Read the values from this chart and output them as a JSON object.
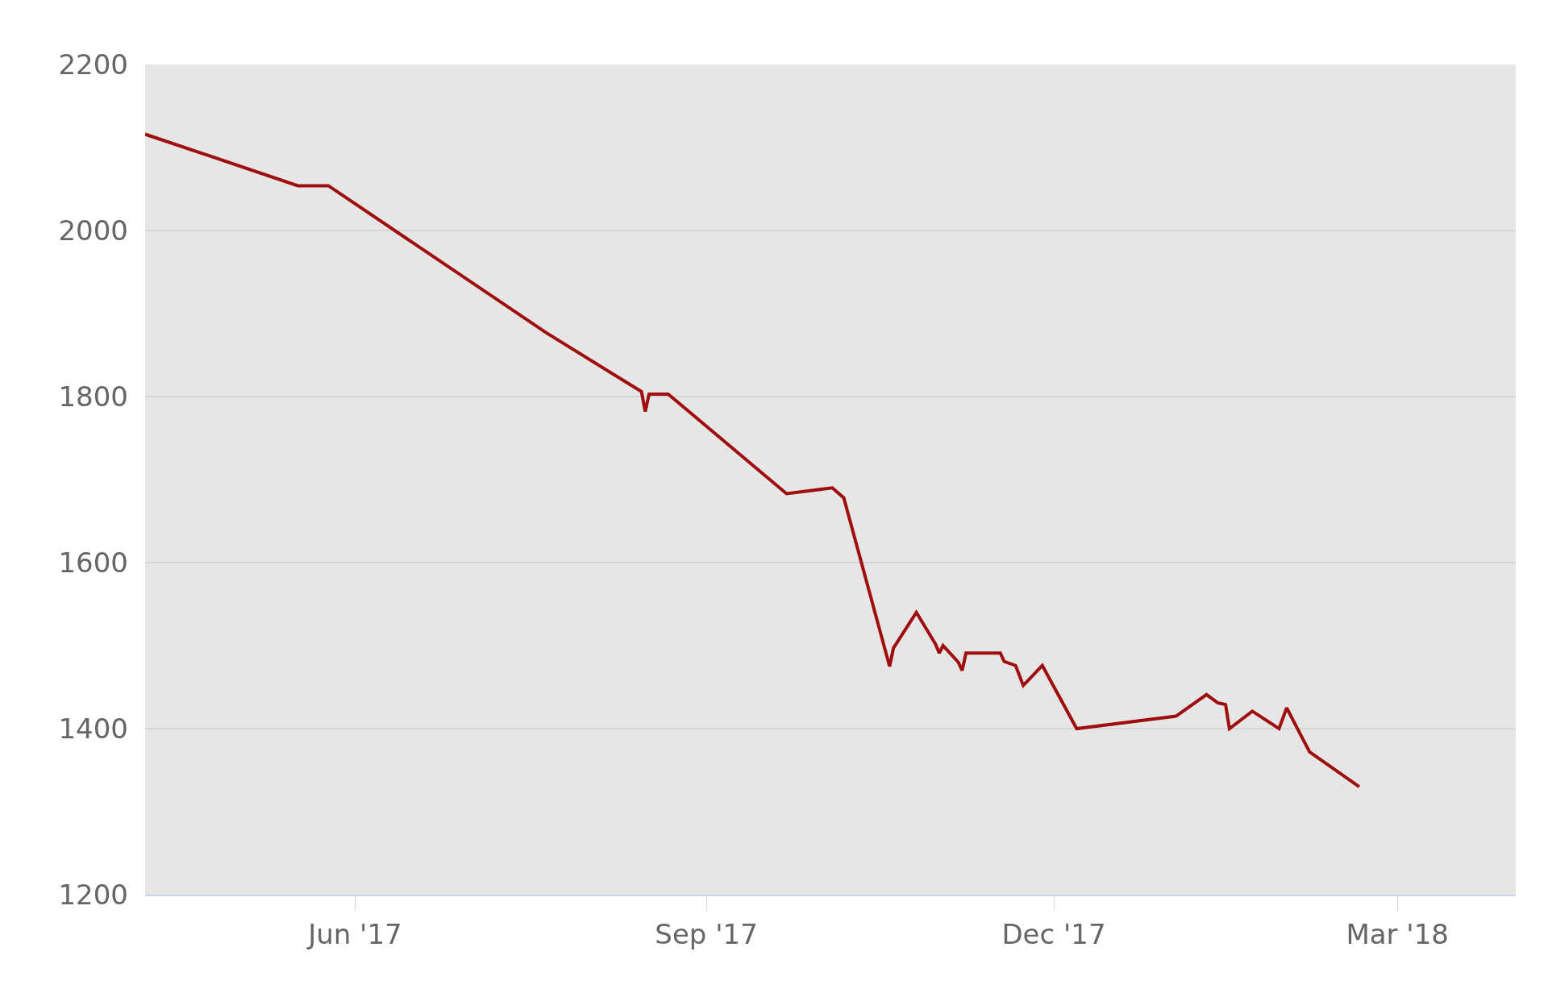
{
  "chart_data": {
    "type": "line",
    "xlim": [
      "2017-04-07",
      "2018-04-01"
    ],
    "xticks": [
      {
        "value": "2017-06-01",
        "label": "Jun '17"
      },
      {
        "value": "2017-09-01",
        "label": "Sep '17"
      },
      {
        "value": "2017-12-01",
        "label": "Dec '17"
      },
      {
        "value": "2018-03-01",
        "label": "Mar '18"
      }
    ],
    "ylim": [
      1200,
      2200
    ],
    "yticks": [
      1200,
      1400,
      1600,
      1800,
      2000,
      2200
    ],
    "grid": "y",
    "marker": "none",
    "line_style": "solid",
    "series": [
      {
        "color": "#a00d0d",
        "x": [
          "2017-04-07",
          "2017-05-17",
          "2017-05-25",
          "2017-07-21",
          "2017-08-15",
          "2017-08-16",
          "2017-08-17",
          "2017-08-22",
          "2017-09-22",
          "2017-10-04",
          "2017-10-07",
          "2017-10-19",
          "2017-10-20",
          "2017-10-26",
          "2017-10-31",
          "2017-11-01",
          "2017-11-02",
          "2017-11-06",
          "2017-11-07",
          "2017-11-08",
          "2017-11-17",
          "2017-11-18",
          "2017-11-21",
          "2017-11-23",
          "2017-11-28",
          "2017-12-07",
          "2018-01-02",
          "2018-01-10",
          "2018-01-13",
          "2018-01-15",
          "2018-01-16",
          "2018-01-22",
          "2018-01-29",
          "2018-01-31",
          "2018-02-06",
          "2018-02-19"
        ],
        "values": [
          2116,
          2054,
          2054,
          1877,
          1806,
          1782,
          1803,
          1803,
          1683,
          1690,
          1678,
          1475,
          1497,
          1540,
          1502,
          1491,
          1500,
          1480,
          1470,
          1491,
          1491,
          1481,
          1476,
          1452,
          1476,
          1400,
          1415,
          1441,
          1431,
          1429,
          1400,
          1421,
          1400,
          1425,
          1372,
          1330
        ]
      }
    ]
  }
}
